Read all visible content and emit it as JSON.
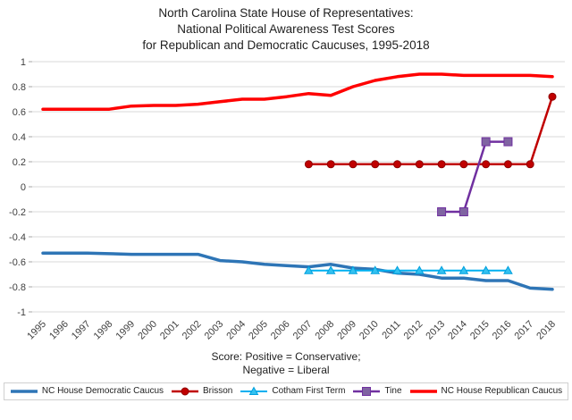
{
  "title": {
    "line1": "North Carolina State House of Representatives:",
    "line2": "National Political Awareness Test Scores",
    "line3": "for Republican and Democratic Caucuses, 1995-2018"
  },
  "caption": {
    "line1": "Score: Positive = Conservative;",
    "line2": "Negative = Liberal"
  },
  "chart_data": {
    "type": "line",
    "x": [
      1995,
      1996,
      1997,
      1998,
      1999,
      2000,
      2001,
      2002,
      2003,
      2004,
      2005,
      2006,
      2007,
      2008,
      2009,
      2010,
      2011,
      2012,
      2013,
      2014,
      2015,
      2016,
      2017,
      2018
    ],
    "ylim": [
      -1,
      1
    ],
    "yticks": [
      -1,
      -0.8,
      -0.6,
      -0.4,
      -0.2,
      0,
      0.2,
      0.4,
      0.6,
      0.8,
      1
    ],
    "grid": true,
    "legend_position": "bottom",
    "colors": {
      "grid": "#d9d9d9",
      "tick": "#a6a6a6",
      "axis_text": "#404040"
    },
    "series": [
      {
        "id": "democratic-caucus",
        "name": "NC House Democratic Caucus",
        "color": "#2e75b6",
        "width": 3.5,
        "marker": "none",
        "x": [
          1995,
          1996,
          1997,
          1998,
          1999,
          2000,
          2001,
          2002,
          2003,
          2004,
          2005,
          2006,
          2007,
          2008,
          2009,
          2010,
          2011,
          2012,
          2013,
          2014,
          2015,
          2016,
          2017,
          2018
        ],
        "values": [
          -0.53,
          -0.53,
          -0.53,
          -0.535,
          -0.54,
          -0.54,
          -0.54,
          -0.54,
          -0.59,
          -0.6,
          -0.62,
          -0.63,
          -0.64,
          -0.62,
          -0.65,
          -0.66,
          -0.69,
          -0.7,
          -0.73,
          -0.73,
          -0.75,
          -0.75,
          -0.81,
          -0.82
        ]
      },
      {
        "id": "brisson",
        "name": "Brisson",
        "color": "#c00000",
        "width": 2.5,
        "marker": "circle",
        "marker_fill": "#c00000",
        "marker_stroke": "#8f0000",
        "x": [
          2007,
          2008,
          2009,
          2010,
          2011,
          2012,
          2013,
          2014,
          2015,
          2016,
          2017,
          2018
        ],
        "values": [
          0.18,
          0.18,
          0.18,
          0.18,
          0.18,
          0.18,
          0.18,
          0.18,
          0.18,
          0.18,
          0.18,
          0.72
        ]
      },
      {
        "id": "cotham-first-term",
        "name": "Cotham First Term",
        "color": "#00b0f0",
        "width": 2,
        "marker": "triangle",
        "marker_fill": "#33c1f0",
        "marker_stroke": "#00a0dd",
        "x": [
          2007,
          2008,
          2009,
          2010,
          2011,
          2012,
          2013,
          2014,
          2015,
          2016
        ],
        "values": [
          -0.67,
          -0.67,
          -0.67,
          -0.67,
          -0.67,
          -0.67,
          -0.67,
          -0.67,
          -0.67,
          -0.67
        ]
      },
      {
        "id": "tine",
        "name": "Tine",
        "color": "#7030a0",
        "width": 2.5,
        "marker": "square",
        "marker_fill": "#8064a2",
        "marker_stroke": "#7030a0",
        "x": [
          2013,
          2014,
          2015,
          2016
        ],
        "values": [
          -0.2,
          -0.2,
          0.36,
          0.36
        ]
      },
      {
        "id": "republican-caucus",
        "name": "NC House Republican Caucus",
        "color": "#ff0000",
        "width": 3.5,
        "marker": "none",
        "x": [
          1995,
          1996,
          1997,
          1998,
          1999,
          2000,
          2001,
          2002,
          2003,
          2004,
          2005,
          2006,
          2007,
          2008,
          2009,
          2010,
          2011,
          2012,
          2013,
          2014,
          2015,
          2016,
          2017,
          2018
        ],
        "values": [
          0.62,
          0.62,
          0.62,
          0.62,
          0.645,
          0.65,
          0.65,
          0.66,
          0.68,
          0.7,
          0.7,
          0.72,
          0.745,
          0.73,
          0.8,
          0.85,
          0.88,
          0.9,
          0.9,
          0.89,
          0.89,
          0.89,
          0.89,
          0.88
        ]
      }
    ]
  }
}
